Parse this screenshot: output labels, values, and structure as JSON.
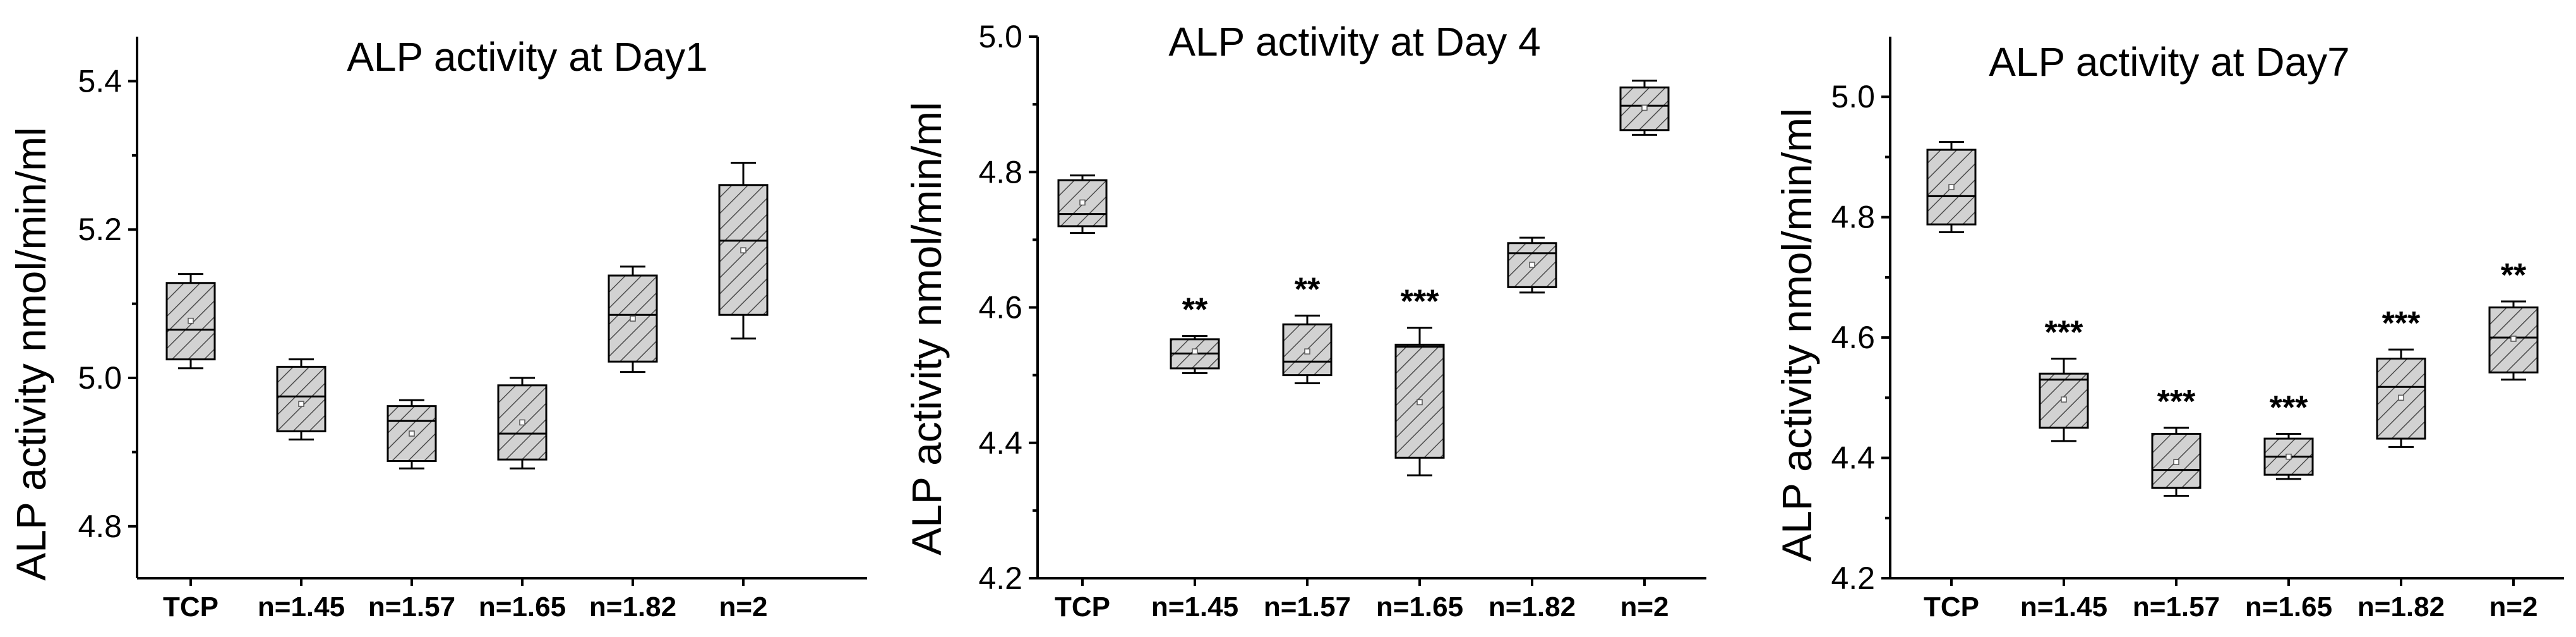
{
  "chart_data": [
    {
      "type": "box",
      "title": "ALP activity at Day1",
      "ylabel": "ALP activity nmol/min/ml",
      "xlabel": "",
      "ylim": [
        4.73,
        5.46
      ],
      "yticks": [
        "4.8",
        "5.0",
        "5.2",
        "5.4"
      ],
      "categories": [
        "TCP",
        "n=1.45",
        "n=1.57",
        "n=1.65",
        "n=1.82",
        "n=2"
      ],
      "boxes": [
        {
          "min": 5.013,
          "q1": 5.025,
          "median": 5.065,
          "q3": 5.128,
          "max": 5.14,
          "mean": 5.077
        },
        {
          "min": 4.917,
          "q1": 4.928,
          "median": 4.975,
          "q3": 5.015,
          "max": 5.025,
          "mean": 4.965
        },
        {
          "min": 4.878,
          "q1": 4.888,
          "median": 4.942,
          "q3": 4.962,
          "max": 4.97,
          "mean": 4.925
        },
        {
          "min": 4.878,
          "q1": 4.89,
          "median": 4.925,
          "q3": 4.99,
          "max": 5.0,
          "mean": 4.94
        },
        {
          "min": 5.008,
          "q1": 5.022,
          "median": 5.085,
          "q3": 5.138,
          "max": 5.15,
          "mean": 5.08
        },
        {
          "min": 5.053,
          "q1": 5.085,
          "median": 5.185,
          "q3": 5.26,
          "max": 5.29,
          "mean": 5.172
        }
      ],
      "significance": [
        "",
        "",
        "",
        "",
        "",
        ""
      ]
    },
    {
      "type": "box",
      "title": "ALP activity at Day 4",
      "ylabel": "ALP activity nmol/min/ml",
      "xlabel": "",
      "ylim": [
        4.2,
        5.0
      ],
      "yticks": [
        "4.2",
        "4.4",
        "4.6",
        "4.8",
        "5.0"
      ],
      "categories": [
        "TCP",
        "n=1.45",
        "n=1.57",
        "n=1.65",
        "n=1.82",
        "n=2"
      ],
      "boxes": [
        {
          "min": 4.71,
          "q1": 4.72,
          "median": 4.738,
          "q3": 4.788,
          "max": 4.795,
          "mean": 4.755
        },
        {
          "min": 4.503,
          "q1": 4.51,
          "median": 4.532,
          "q3": 4.553,
          "max": 4.558,
          "mean": 4.535
        },
        {
          "min": 4.488,
          "q1": 4.5,
          "median": 4.52,
          "q3": 4.575,
          "max": 4.588,
          "mean": 4.535
        },
        {
          "min": 4.352,
          "q1": 4.378,
          "median": 4.542,
          "q3": 4.545,
          "max": 4.57,
          "mean": 4.46
        },
        {
          "min": 4.622,
          "q1": 4.63,
          "median": 4.68,
          "q3": 4.695,
          "max": 4.703,
          "mean": 4.663
        },
        {
          "min": 4.855,
          "q1": 4.862,
          "median": 4.898,
          "q3": 4.925,
          "max": 4.935,
          "mean": 4.895
        }
      ],
      "significance": [
        "",
        "**",
        "**",
        "***",
        "",
        ""
      ]
    },
    {
      "type": "box",
      "title": "ALP activity at Day7",
      "ylabel": "ALP activity nmol/min/ml",
      "xlabel": "",
      "ylim": [
        4.2,
        5.1
      ],
      "yticks": [
        "4.2",
        "4.4",
        "4.6",
        "4.8",
        "5.0"
      ],
      "categories": [
        "TCP",
        "n=1.45",
        "n=1.57",
        "n=1.65",
        "n=1.82",
        "n=2"
      ],
      "boxes": [
        {
          "min": 4.775,
          "q1": 4.788,
          "median": 4.835,
          "q3": 4.912,
          "max": 4.925,
          "mean": 4.85
        },
        {
          "min": 4.428,
          "q1": 4.45,
          "median": 4.53,
          "q3": 4.54,
          "max": 4.565,
          "mean": 4.497
        },
        {
          "min": 4.337,
          "q1": 4.35,
          "median": 4.38,
          "q3": 4.44,
          "max": 4.45,
          "mean": 4.393
        },
        {
          "min": 4.365,
          "q1": 4.372,
          "median": 4.402,
          "q3": 4.432,
          "max": 4.44,
          "mean": 4.402
        },
        {
          "min": 4.418,
          "q1": 4.432,
          "median": 4.518,
          "q3": 4.565,
          "max": 4.58,
          "mean": 4.5
        },
        {
          "min": 4.53,
          "q1": 4.542,
          "median": 4.6,
          "q3": 4.65,
          "max": 4.66,
          "mean": 4.598
        }
      ],
      "significance": [
        "",
        "***",
        "***",
        "***",
        "***",
        "**"
      ]
    }
  ]
}
